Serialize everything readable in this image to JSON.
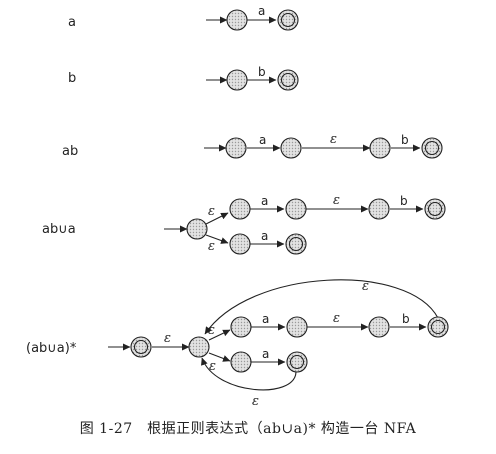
{
  "caption": "图 1-27　根据正则表达式（ab∪a)* 构造一台 NFA",
  "rows": [
    {
      "label": "a"
    },
    {
      "label": "b"
    },
    {
      "label": "ab"
    },
    {
      "label": "ab∪a"
    },
    {
      "label": "(ab∪a)*"
    }
  ],
  "symbols": {
    "a": "a",
    "b": "b",
    "epsilon": "ε"
  },
  "colors": {
    "state_fill": "#d8d8d8",
    "stroke": "#222222"
  }
}
